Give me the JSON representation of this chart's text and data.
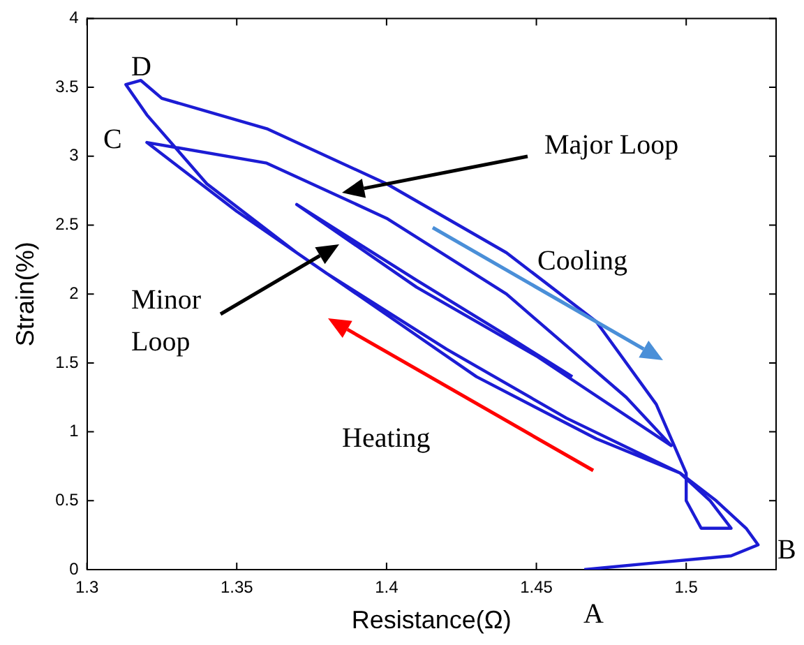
{
  "chart_data": {
    "type": "line",
    "xlabel": "Resistance(Ω)",
    "ylabel": "Strain(%)",
    "xlim": [
      1.3,
      1.53
    ],
    "ylim": [
      0,
      4
    ],
    "xticks": [
      1.3,
      1.35,
      1.4,
      1.45,
      1.5
    ],
    "yticks": [
      0,
      0.5,
      1,
      1.5,
      2,
      2.5,
      3,
      3.5,
      4
    ],
    "grid": false,
    "legend": false,
    "marker": "none",
    "line_style": "solid",
    "series": [
      {
        "color": "#1c1cd4",
        "x": [
          1.466,
          1.49,
          1.515,
          1.524,
          1.52,
          1.51,
          1.498,
          1.47,
          1.43,
          1.4,
          1.37,
          1.34,
          1.32,
          1.313,
          1.318,
          1.325,
          1.36,
          1.4,
          1.44,
          1.47,
          1.49,
          1.5,
          1.5,
          1.505,
          1.515,
          1.508,
          1.498,
          1.46,
          1.42,
          1.38,
          1.35,
          1.32,
          1.36,
          1.4,
          1.44,
          1.48,
          1.495,
          1.45,
          1.41,
          1.37,
          1.41,
          1.44,
          1.462
        ],
        "values": [
          0,
          0.05,
          0.1,
          0.18,
          0.3,
          0.5,
          0.7,
          0.95,
          1.4,
          1.85,
          2.3,
          2.8,
          3.3,
          3.52,
          3.55,
          3.42,
          3.2,
          2.8,
          2.3,
          1.8,
          1.2,
          0.7,
          0.5,
          0.3,
          0.3,
          0.5,
          0.7,
          1.1,
          1.6,
          2.15,
          2.6,
          3.1,
          2.95,
          2.55,
          2.0,
          1.25,
          0.9,
          1.55,
          2.05,
          2.65,
          2.1,
          1.7,
          1.4
        ]
      }
    ],
    "annotations": [
      "D",
      "C",
      "Major Loop",
      "Minor Loop",
      "Cooling",
      "Heating",
      "A",
      "B"
    ]
  }
}
